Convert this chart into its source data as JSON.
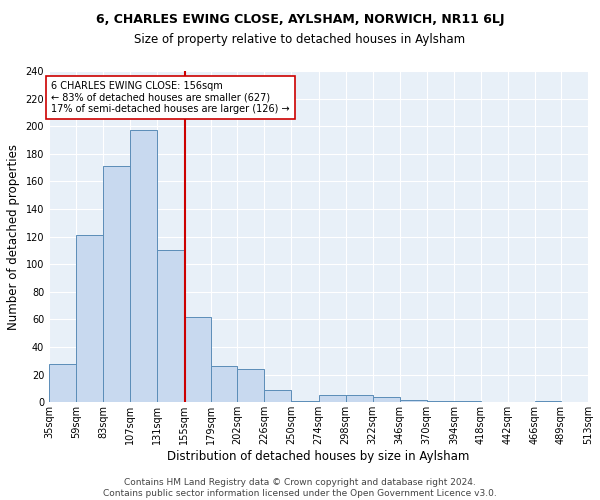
{
  "title": "6, CHARLES EWING CLOSE, AYLSHAM, NORWICH, NR11 6LJ",
  "subtitle": "Size of property relative to detached houses in Aylsham",
  "xlabel": "Distribution of detached houses by size in Aylsham",
  "ylabel": "Number of detached properties",
  "bin_labels": [
    "35sqm",
    "59sqm",
    "83sqm",
    "107sqm",
    "131sqm",
    "155sqm",
    "179sqm",
    "202sqm",
    "226sqm",
    "250sqm",
    "274sqm",
    "298sqm",
    "322sqm",
    "346sqm",
    "370sqm",
    "394sqm",
    "418sqm",
    "442sqm",
    "466sqm",
    "489sqm",
    "513sqm"
  ],
  "bin_edges": [
    35,
    59,
    83,
    107,
    131,
    155,
    179,
    202,
    226,
    250,
    274,
    298,
    322,
    346,
    370,
    394,
    418,
    442,
    466,
    489,
    513
  ],
  "bar_heights": [
    28,
    121,
    171,
    197,
    110,
    62,
    26,
    24,
    9,
    1,
    5,
    5,
    4,
    2,
    1,
    1,
    0,
    0,
    1,
    0,
    0
  ],
  "bar_color": "#c8d9ef",
  "bar_edge_color": "#5b8db8",
  "property_size": 156,
  "vline_color": "#cc0000",
  "annotation_text": "6 CHARLES EWING CLOSE: 156sqm\n← 83% of detached houses are smaller (627)\n17% of semi-detached houses are larger (126) →",
  "annotation_box_color": "#ffffff",
  "annotation_box_edge": "#cc0000",
  "footer_text": "Contains HM Land Registry data © Crown copyright and database right 2024.\nContains public sector information licensed under the Open Government Licence v3.0.",
  "ylim": [
    0,
    240
  ],
  "yticks": [
    0,
    20,
    40,
    60,
    80,
    100,
    120,
    140,
    160,
    180,
    200,
    220,
    240
  ],
  "background_color": "#e8f0f8",
  "fig_background": "#ffffff",
  "title_fontsize": 9,
  "subtitle_fontsize": 8.5,
  "ylabel_fontsize": 8.5,
  "xlabel_fontsize": 8.5,
  "tick_fontsize": 7,
  "footer_fontsize": 6.5
}
